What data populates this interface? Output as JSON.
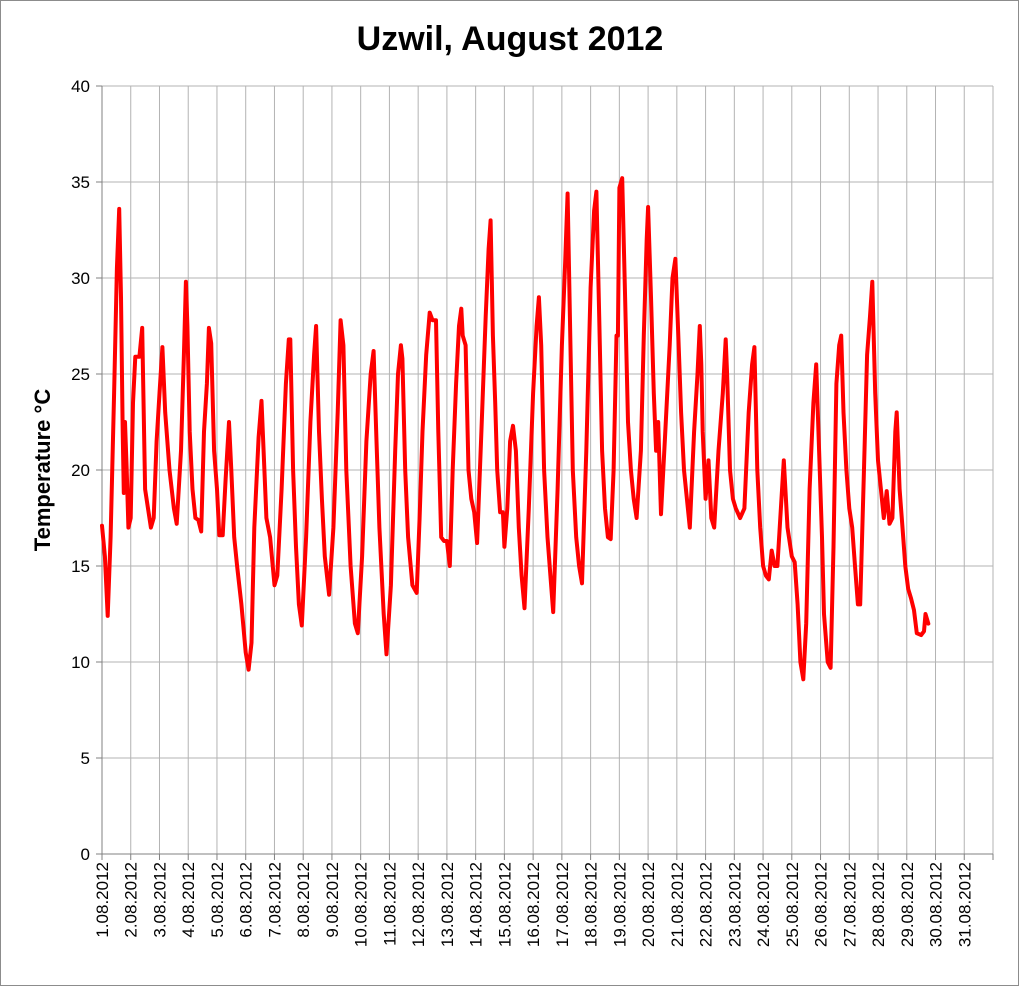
{
  "chart_data": {
    "type": "line",
    "title": "Uzwil, August 2012",
    "xlabel": "",
    "ylabel": "Temperature °C",
    "ylim": [
      0,
      40
    ],
    "y_ticks": [
      "0",
      "5",
      "10",
      "15",
      "20",
      "25",
      "30",
      "35",
      "40"
    ],
    "grid": true,
    "categories": [
      "1.08.2012",
      "2.08.2012",
      "3.08.2012",
      "4.08.2012",
      "5.08.2012",
      "6.08.2012",
      "7.08.2012",
      "8.08.2012",
      "9.08.2012",
      "10.08.2012",
      "11.08.2012",
      "12.08.2012",
      "13.08.2012",
      "14.08.2012",
      "15.08.2012",
      "16.08.2012",
      "17.08.2012",
      "18.08.2012",
      "19.08.2012",
      "20.08.2012",
      "21.08.2012",
      "22.08.2012",
      "23.08.2012",
      "24.08.2012",
      "25.08.2012",
      "26.08.2012",
      "27.08.2012",
      "28.08.2012",
      "29.08.2012",
      "30.08.2012",
      "31.08.2012"
    ],
    "colors": {
      "line": "#ff0000",
      "grid": "#b3b3b3",
      "axis": "#808080"
    },
    "series": [
      {
        "points": [
          [
            0,
            17.1
          ],
          [
            0.1,
            15.5
          ],
          [
            0.2,
            12.4
          ],
          [
            0.3,
            16.5
          ],
          [
            0.42,
            24.0
          ],
          [
            0.52,
            30.5
          ],
          [
            0.6,
            33.6
          ],
          [
            0.66,
            29.0
          ],
          [
            0.72,
            22.0
          ],
          [
            0.76,
            18.8
          ],
          [
            0.8,
            22.5
          ],
          [
            0.86,
            20.0
          ],
          [
            0.92,
            17.0
          ],
          [
            1.0,
            17.5
          ],
          [
            1.08,
            23.5
          ],
          [
            1.16,
            25.9
          ],
          [
            1.3,
            25.9
          ],
          [
            1.4,
            27.4
          ],
          [
            1.5,
            19.0
          ],
          [
            1.6,
            18.0
          ],
          [
            1.7,
            17.0
          ],
          [
            1.8,
            17.5
          ],
          [
            1.9,
            21.5
          ],
          [
            2.0,
            24.0
          ],
          [
            2.1,
            26.4
          ],
          [
            2.2,
            23.0
          ],
          [
            2.35,
            20.0
          ],
          [
            2.5,
            18.0
          ],
          [
            2.6,
            17.2
          ],
          [
            2.75,
            21.0
          ],
          [
            2.85,
            26.0
          ],
          [
            2.92,
            29.8
          ],
          [
            2.97,
            27.5
          ],
          [
            3.05,
            22.0
          ],
          [
            3.15,
            19.0
          ],
          [
            3.25,
            17.5
          ],
          [
            3.35,
            17.4
          ],
          [
            3.45,
            16.8
          ],
          [
            3.55,
            22.0
          ],
          [
            3.65,
            24.5
          ],
          [
            3.72,
            27.4
          ],
          [
            3.8,
            26.6
          ],
          [
            3.9,
            21.0
          ],
          [
            4.0,
            19.0
          ],
          [
            4.08,
            16.6
          ],
          [
            4.2,
            16.6
          ],
          [
            4.3,
            19.5
          ],
          [
            4.42,
            22.5
          ],
          [
            4.5,
            20.0
          ],
          [
            4.6,
            16.5
          ],
          [
            4.7,
            15.0
          ],
          [
            4.85,
            13.0
          ],
          [
            5.0,
            10.5
          ],
          [
            5.1,
            9.6
          ],
          [
            5.2,
            11.0
          ],
          [
            5.3,
            17.0
          ],
          [
            5.45,
            21.7
          ],
          [
            5.55,
            23.6
          ],
          [
            5.65,
            20.0
          ],
          [
            5.72,
            17.5
          ],
          [
            5.85,
            16.5
          ],
          [
            6.0,
            14.0
          ],
          [
            6.1,
            14.5
          ],
          [
            6.25,
            19.0
          ],
          [
            6.4,
            24.5
          ],
          [
            6.5,
            26.8
          ],
          [
            6.55,
            26.8
          ],
          [
            6.65,
            20.0
          ],
          [
            6.75,
            16.0
          ],
          [
            6.85,
            13.0
          ],
          [
            6.95,
            11.9
          ],
          [
            7.1,
            16.5
          ],
          [
            7.25,
            22.5
          ],
          [
            7.38,
            26.0
          ],
          [
            7.45,
            27.5
          ],
          [
            7.55,
            22.0
          ],
          [
            7.65,
            18.5
          ],
          [
            7.75,
            15.5
          ],
          [
            7.9,
            13.5
          ],
          [
            8.05,
            17.0
          ],
          [
            8.2,
            23.0
          ],
          [
            8.3,
            27.8
          ],
          [
            8.4,
            26.5
          ],
          [
            8.5,
            20.0
          ],
          [
            8.65,
            15.0
          ],
          [
            8.8,
            12.0
          ],
          [
            8.9,
            11.5
          ],
          [
            9.05,
            15.5
          ],
          [
            9.2,
            21.5
          ],
          [
            9.35,
            25.0
          ],
          [
            9.45,
            26.2
          ],
          [
            9.55,
            21.5
          ],
          [
            9.65,
            17.0
          ],
          [
            9.8,
            12.5
          ],
          [
            9.9,
            10.4
          ],
          [
            10.05,
            14.0
          ],
          [
            10.2,
            21.0
          ],
          [
            10.3,
            25.0
          ],
          [
            10.4,
            26.5
          ],
          [
            10.45,
            25.8
          ],
          [
            10.55,
            20.0
          ],
          [
            10.65,
            16.5
          ],
          [
            10.8,
            14.0
          ],
          [
            10.95,
            13.6
          ],
          [
            11.05,
            17.5
          ],
          [
            11.15,
            22.0
          ],
          [
            11.28,
            26.0
          ],
          [
            11.4,
            28.2
          ],
          [
            11.5,
            27.8
          ],
          [
            11.62,
            27.8
          ],
          [
            11.7,
            22.0
          ],
          [
            11.8,
            16.5
          ],
          [
            11.9,
            16.3
          ],
          [
            12.0,
            16.3
          ],
          [
            12.1,
            15.0
          ],
          [
            12.2,
            20.0
          ],
          [
            12.32,
            24.5
          ],
          [
            12.42,
            27.5
          ],
          [
            12.5,
            28.4
          ],
          [
            12.55,
            27.0
          ],
          [
            12.65,
            26.5
          ],
          [
            12.75,
            20.0
          ],
          [
            12.85,
            18.5
          ],
          [
            12.95,
            17.8
          ],
          [
            13.05,
            16.2
          ],
          [
            13.2,
            22.0
          ],
          [
            13.35,
            28.0
          ],
          [
            13.45,
            31.5
          ],
          [
            13.52,
            33.0
          ],
          [
            13.6,
            27.0
          ],
          [
            13.68,
            23.5
          ],
          [
            13.75,
            20.0
          ],
          [
            13.85,
            17.8
          ],
          [
            13.95,
            17.8
          ],
          [
            14.0,
            16.0
          ],
          [
            14.1,
            18.0
          ],
          [
            14.2,
            21.5
          ],
          [
            14.3,
            22.3
          ],
          [
            14.4,
            21.0
          ],
          [
            14.5,
            17.0
          ],
          [
            14.6,
            14.5
          ],
          [
            14.7,
            12.8
          ],
          [
            14.85,
            18.0
          ],
          [
            15.0,
            24.0
          ],
          [
            15.12,
            27.5
          ],
          [
            15.2,
            29.0
          ],
          [
            15.28,
            26.5
          ],
          [
            15.38,
            20.0
          ],
          [
            15.5,
            16.5
          ],
          [
            15.6,
            14.5
          ],
          [
            15.7,
            12.6
          ],
          [
            15.85,
            19.0
          ],
          [
            16.0,
            26.5
          ],
          [
            16.12,
            31.0
          ],
          [
            16.2,
            34.4
          ],
          [
            16.28,
            28.0
          ],
          [
            16.38,
            20.0
          ],
          [
            16.5,
            16.5
          ],
          [
            16.6,
            15.0
          ],
          [
            16.7,
            14.1
          ],
          [
            16.85,
            21.0
          ],
          [
            17.0,
            29.5
          ],
          [
            17.12,
            33.5
          ],
          [
            17.2,
            34.5
          ],
          [
            17.3,
            28.0
          ],
          [
            17.4,
            21.0
          ],
          [
            17.5,
            18.0
          ],
          [
            17.6,
            16.5
          ],
          [
            17.7,
            16.4
          ],
          [
            17.8,
            20.0
          ],
          [
            17.9,
            27.0
          ],
          [
            17.95,
            27.0
          ],
          [
            18.0,
            34.7
          ],
          [
            18.1,
            35.2
          ],
          [
            18.2,
            29.0
          ],
          [
            18.3,
            22.5
          ],
          [
            18.4,
            20.0
          ],
          [
            18.5,
            18.5
          ],
          [
            18.6,
            17.5
          ],
          [
            18.75,
            21.0
          ],
          [
            18.85,
            27.0
          ],
          [
            18.95,
            32.0
          ],
          [
            19.0,
            33.7
          ],
          [
            19.1,
            29.0
          ],
          [
            19.2,
            24.0
          ],
          [
            19.28,
            21.0
          ],
          [
            19.35,
            22.5
          ],
          [
            19.45,
            17.7
          ],
          [
            19.6,
            22.0
          ],
          [
            19.75,
            26.5
          ],
          [
            19.85,
            30.0
          ],
          [
            19.95,
            31.0
          ],
          [
            20.05,
            27.0
          ],
          [
            20.15,
            23.0
          ],
          [
            20.25,
            20.0
          ],
          [
            20.35,
            18.5
          ],
          [
            20.45,
            17.0
          ],
          [
            20.6,
            22.0
          ],
          [
            20.72,
            25.0
          ],
          [
            20.8,
            27.5
          ],
          [
            20.85,
            25.5
          ],
          [
            20.9,
            22.0
          ],
          [
            21.0,
            18.5
          ],
          [
            21.1,
            20.5
          ],
          [
            21.2,
            17.5
          ],
          [
            21.3,
            17.0
          ],
          [
            21.45,
            21.0
          ],
          [
            21.6,
            24.0
          ],
          [
            21.7,
            26.8
          ],
          [
            21.75,
            25.0
          ],
          [
            21.85,
            20.0
          ],
          [
            21.95,
            18.5
          ],
          [
            22.05,
            18.0
          ],
          [
            22.2,
            17.5
          ],
          [
            22.35,
            18.0
          ],
          [
            22.5,
            23.0
          ],
          [
            22.62,
            25.5
          ],
          [
            22.7,
            26.4
          ],
          [
            22.8,
            20.0
          ],
          [
            22.9,
            17.0
          ],
          [
            23.0,
            15.0
          ],
          [
            23.1,
            14.5
          ],
          [
            23.2,
            14.3
          ],
          [
            23.3,
            15.8
          ],
          [
            23.4,
            15.0
          ],
          [
            23.5,
            15.0
          ],
          [
            23.6,
            17.5
          ],
          [
            23.72,
            20.5
          ],
          [
            23.85,
            17.0
          ],
          [
            23.95,
            16.0
          ],
          [
            24.0,
            15.5
          ],
          [
            24.1,
            15.2
          ],
          [
            24.2,
            13.0
          ],
          [
            24.3,
            10.0
          ],
          [
            24.4,
            9.1
          ],
          [
            24.5,
            12.0
          ],
          [
            24.62,
            19.0
          ],
          [
            24.75,
            23.5
          ],
          [
            24.85,
            25.5
          ],
          [
            24.95,
            21.0
          ],
          [
            25.05,
            16.5
          ],
          [
            25.12,
            12.5
          ],
          [
            25.25,
            10.0
          ],
          [
            25.35,
            9.7
          ],
          [
            25.45,
            16.0
          ],
          [
            25.55,
            24.5
          ],
          [
            25.65,
            26.5
          ],
          [
            25.72,
            27.0
          ],
          [
            25.8,
            23.0
          ],
          [
            25.9,
            20.0
          ],
          [
            26.0,
            18.0
          ],
          [
            26.1,
            17.0
          ],
          [
            26.2,
            15.0
          ],
          [
            26.3,
            13.0
          ],
          [
            26.38,
            13.0
          ],
          [
            26.5,
            19.5
          ],
          [
            26.62,
            26.0
          ],
          [
            26.72,
            28.0
          ],
          [
            26.8,
            29.8
          ],
          [
            26.9,
            24.0
          ],
          [
            27.0,
            20.5
          ],
          [
            27.1,
            19.0
          ],
          [
            27.2,
            17.5
          ],
          [
            27.3,
            18.9
          ],
          [
            27.4,
            17.2
          ],
          [
            27.5,
            17.5
          ],
          [
            27.6,
            22.0
          ],
          [
            27.65,
            23.0
          ],
          [
            27.75,
            19.0
          ],
          [
            27.85,
            17.0
          ],
          [
            27.95,
            15.0
          ],
          [
            28.05,
            13.8
          ],
          [
            28.15,
            13.3
          ],
          [
            28.25,
            12.7
          ],
          [
            28.35,
            11.5
          ],
          [
            28.5,
            11.4
          ],
          [
            28.6,
            11.6
          ],
          [
            28.65,
            12.5
          ],
          [
            28.75,
            12.0
          ]
        ]
      }
    ]
  }
}
